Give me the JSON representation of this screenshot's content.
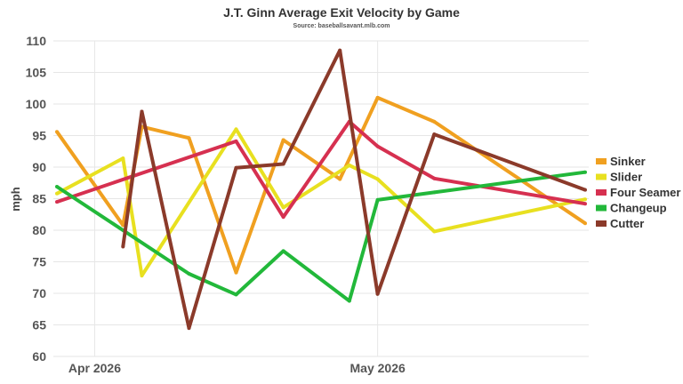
{
  "chart_data": {
    "type": "line",
    "title": "J.T. Ginn Average Exit Velocity by Game",
    "subtitle": "Source: baseballsavant.mlb.com",
    "ylabel": "mph",
    "xlabel": "",
    "ylim": [
      60,
      110
    ],
    "yticks": [
      60,
      65,
      70,
      75,
      80,
      85,
      90,
      95,
      100,
      105,
      110
    ],
    "xlim": [
      "2026-03-28",
      "2026-05-23"
    ],
    "xticks": [
      {
        "date": "2026-04-01",
        "label": "Apr 2026"
      },
      {
        "date": "2026-05-01",
        "label": "May 2026"
      }
    ],
    "grid": true,
    "legend_position": "right",
    "series": [
      {
        "name": "Sinker",
        "color": "#f0a020",
        "points": [
          {
            "x": "2026-03-28",
            "y": 95.6
          },
          {
            "x": "2026-04-04",
            "y": 80.8
          },
          {
            "x": "2026-04-06",
            "y": 96.4
          },
          {
            "x": "2026-04-11",
            "y": 94.6
          },
          {
            "x": "2026-04-16",
            "y": 73.3
          },
          {
            "x": "2026-04-21",
            "y": 94.3
          },
          {
            "x": "2026-04-27",
            "y": 88.1
          },
          {
            "x": "2026-05-01",
            "y": 101.0
          },
          {
            "x": "2026-05-07",
            "y": 97.2
          },
          {
            "x": "2026-05-23",
            "y": 81.1
          }
        ]
      },
      {
        "name": "Slider",
        "color": "#e8e020",
        "points": [
          {
            "x": "2026-03-28",
            "y": 85.8
          },
          {
            "x": "2026-04-04",
            "y": 91.4
          },
          {
            "x": "2026-04-06",
            "y": 72.8
          },
          {
            "x": "2026-04-16",
            "y": 96.0
          },
          {
            "x": "2026-04-21",
            "y": 83.6
          },
          {
            "x": "2026-04-28",
            "y": 90.3
          },
          {
            "x": "2026-05-01",
            "y": 88.1
          },
          {
            "x": "2026-05-07",
            "y": 79.8
          },
          {
            "x": "2026-05-23",
            "y": 84.9
          }
        ]
      },
      {
        "name": "Four Seamer",
        "color": "#d63050",
        "points": [
          {
            "x": "2026-03-28",
            "y": 84.5
          },
          {
            "x": "2026-04-16",
            "y": 94.1
          },
          {
            "x": "2026-04-21",
            "y": 82.1
          },
          {
            "x": "2026-04-28",
            "y": 97.2
          },
          {
            "x": "2026-05-01",
            "y": 93.3
          },
          {
            "x": "2026-05-07",
            "y": 88.2
          },
          {
            "x": "2026-05-23",
            "y": 84.2
          }
        ]
      },
      {
        "name": "Changeup",
        "color": "#22b83a",
        "points": [
          {
            "x": "2026-03-28",
            "y": 86.9
          },
          {
            "x": "2026-04-11",
            "y": 73.1
          },
          {
            "x": "2026-04-16",
            "y": 69.8
          },
          {
            "x": "2026-04-21",
            "y": 76.7
          },
          {
            "x": "2026-04-28",
            "y": 68.8
          },
          {
            "x": "2026-05-01",
            "y": 84.8
          },
          {
            "x": "2026-05-07",
            "y": 86.0
          },
          {
            "x": "2026-05-23",
            "y": 89.2
          }
        ]
      },
      {
        "name": "Cutter",
        "color": "#8b3a2a",
        "points": [
          {
            "x": "2026-04-04",
            "y": 77.4
          },
          {
            "x": "2026-04-06",
            "y": 98.8
          },
          {
            "x": "2026-04-11",
            "y": 64.5
          },
          {
            "x": "2026-04-16",
            "y": 89.9
          },
          {
            "x": "2026-04-21",
            "y": 90.5
          },
          {
            "x": "2026-04-27",
            "y": 108.5
          },
          {
            "x": "2026-05-01",
            "y": 69.9
          },
          {
            "x": "2026-05-07",
            "y": 95.2
          },
          {
            "x": "2026-05-23",
            "y": 86.4
          }
        ]
      }
    ]
  }
}
